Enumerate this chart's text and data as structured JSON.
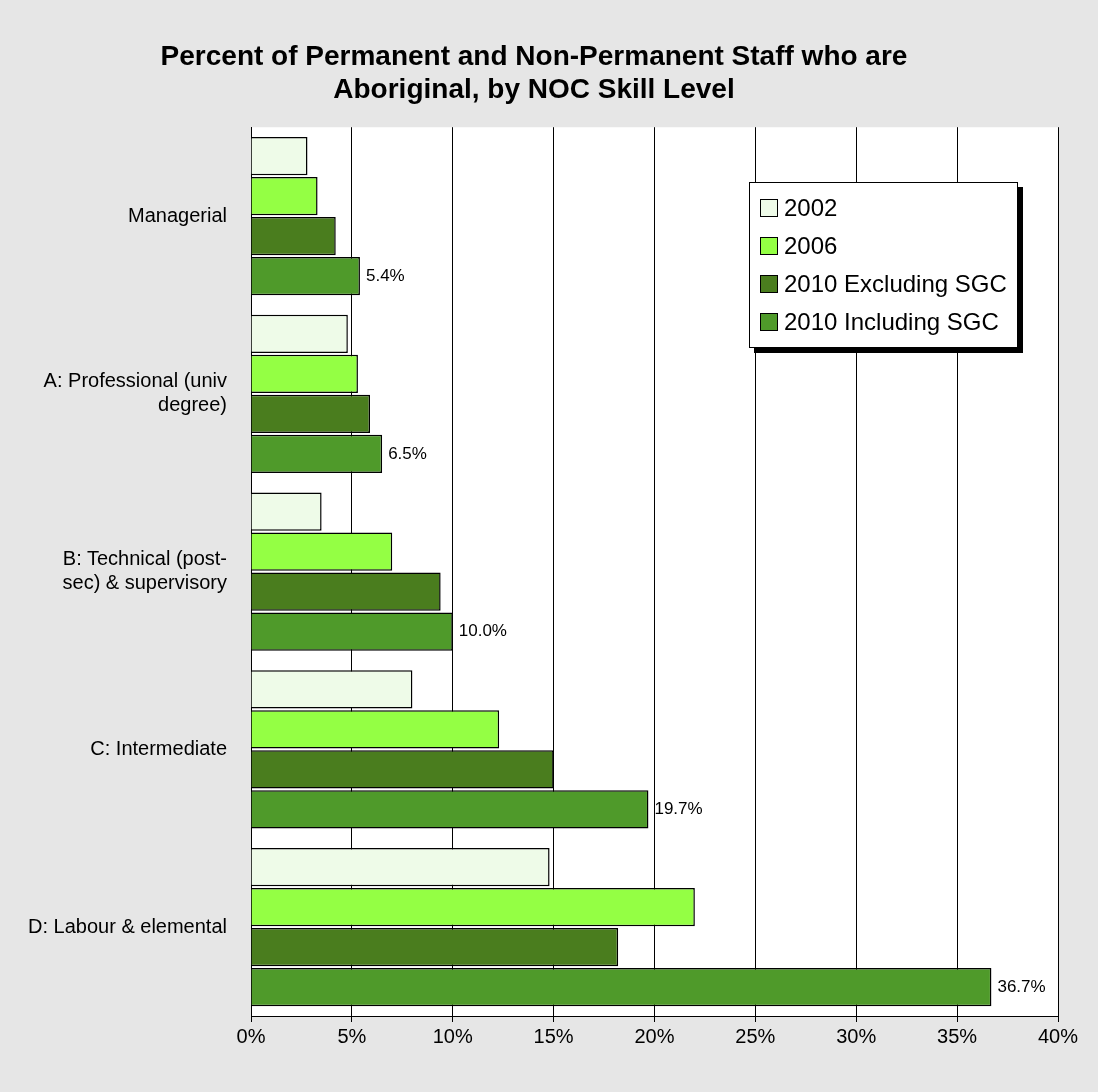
{
  "chart_data": {
    "type": "bar",
    "orientation": "horizontal",
    "title": "Percent of Permanent and Non-Permanent Staff who are Aboriginal, by NOC Skill Level",
    "categories": [
      "Managerial",
      "A: Professional (univ degree)",
      "B: Technical (post-sec) & supervisory",
      "C: Intermediate",
      "D: Labour & elemental"
    ],
    "series": [
      {
        "name": "2002",
        "color": "#eefbe8",
        "values": [
          2.8,
          4.8,
          3.5,
          8.0,
          14.8
        ]
      },
      {
        "name": "2006",
        "color": "#94ff44",
        "values": [
          3.3,
          5.3,
          7.0,
          12.3,
          22.0
        ]
      },
      {
        "name": "2010 Excluding SGC",
        "color": "#4a7d1e",
        "values": [
          4.2,
          5.9,
          9.4,
          15.0,
          18.2
        ]
      },
      {
        "name": "2010 Including SGC",
        "color": "#4f9a2a",
        "values": [
          5.4,
          6.5,
          10.0,
          19.7,
          36.7
        ],
        "value_labels": [
          "5.4%",
          "6.5%",
          "10.0%",
          "19.7%",
          "36.7%"
        ]
      }
    ],
    "xlim": [
      0,
      40
    ],
    "xticks": [
      {
        "value": 0,
        "label": "0%"
      },
      {
        "value": 5,
        "label": "5%"
      },
      {
        "value": 10,
        "label": "10%"
      },
      {
        "value": 15,
        "label": "15%"
      },
      {
        "value": 20,
        "label": "20%"
      },
      {
        "value": 25,
        "label": "25%"
      },
      {
        "value": 30,
        "label": "30%"
      },
      {
        "value": 35,
        "label": "35%"
      },
      {
        "value": 40,
        "label": "40%"
      }
    ],
    "grid": "x",
    "legend": "top right"
  }
}
